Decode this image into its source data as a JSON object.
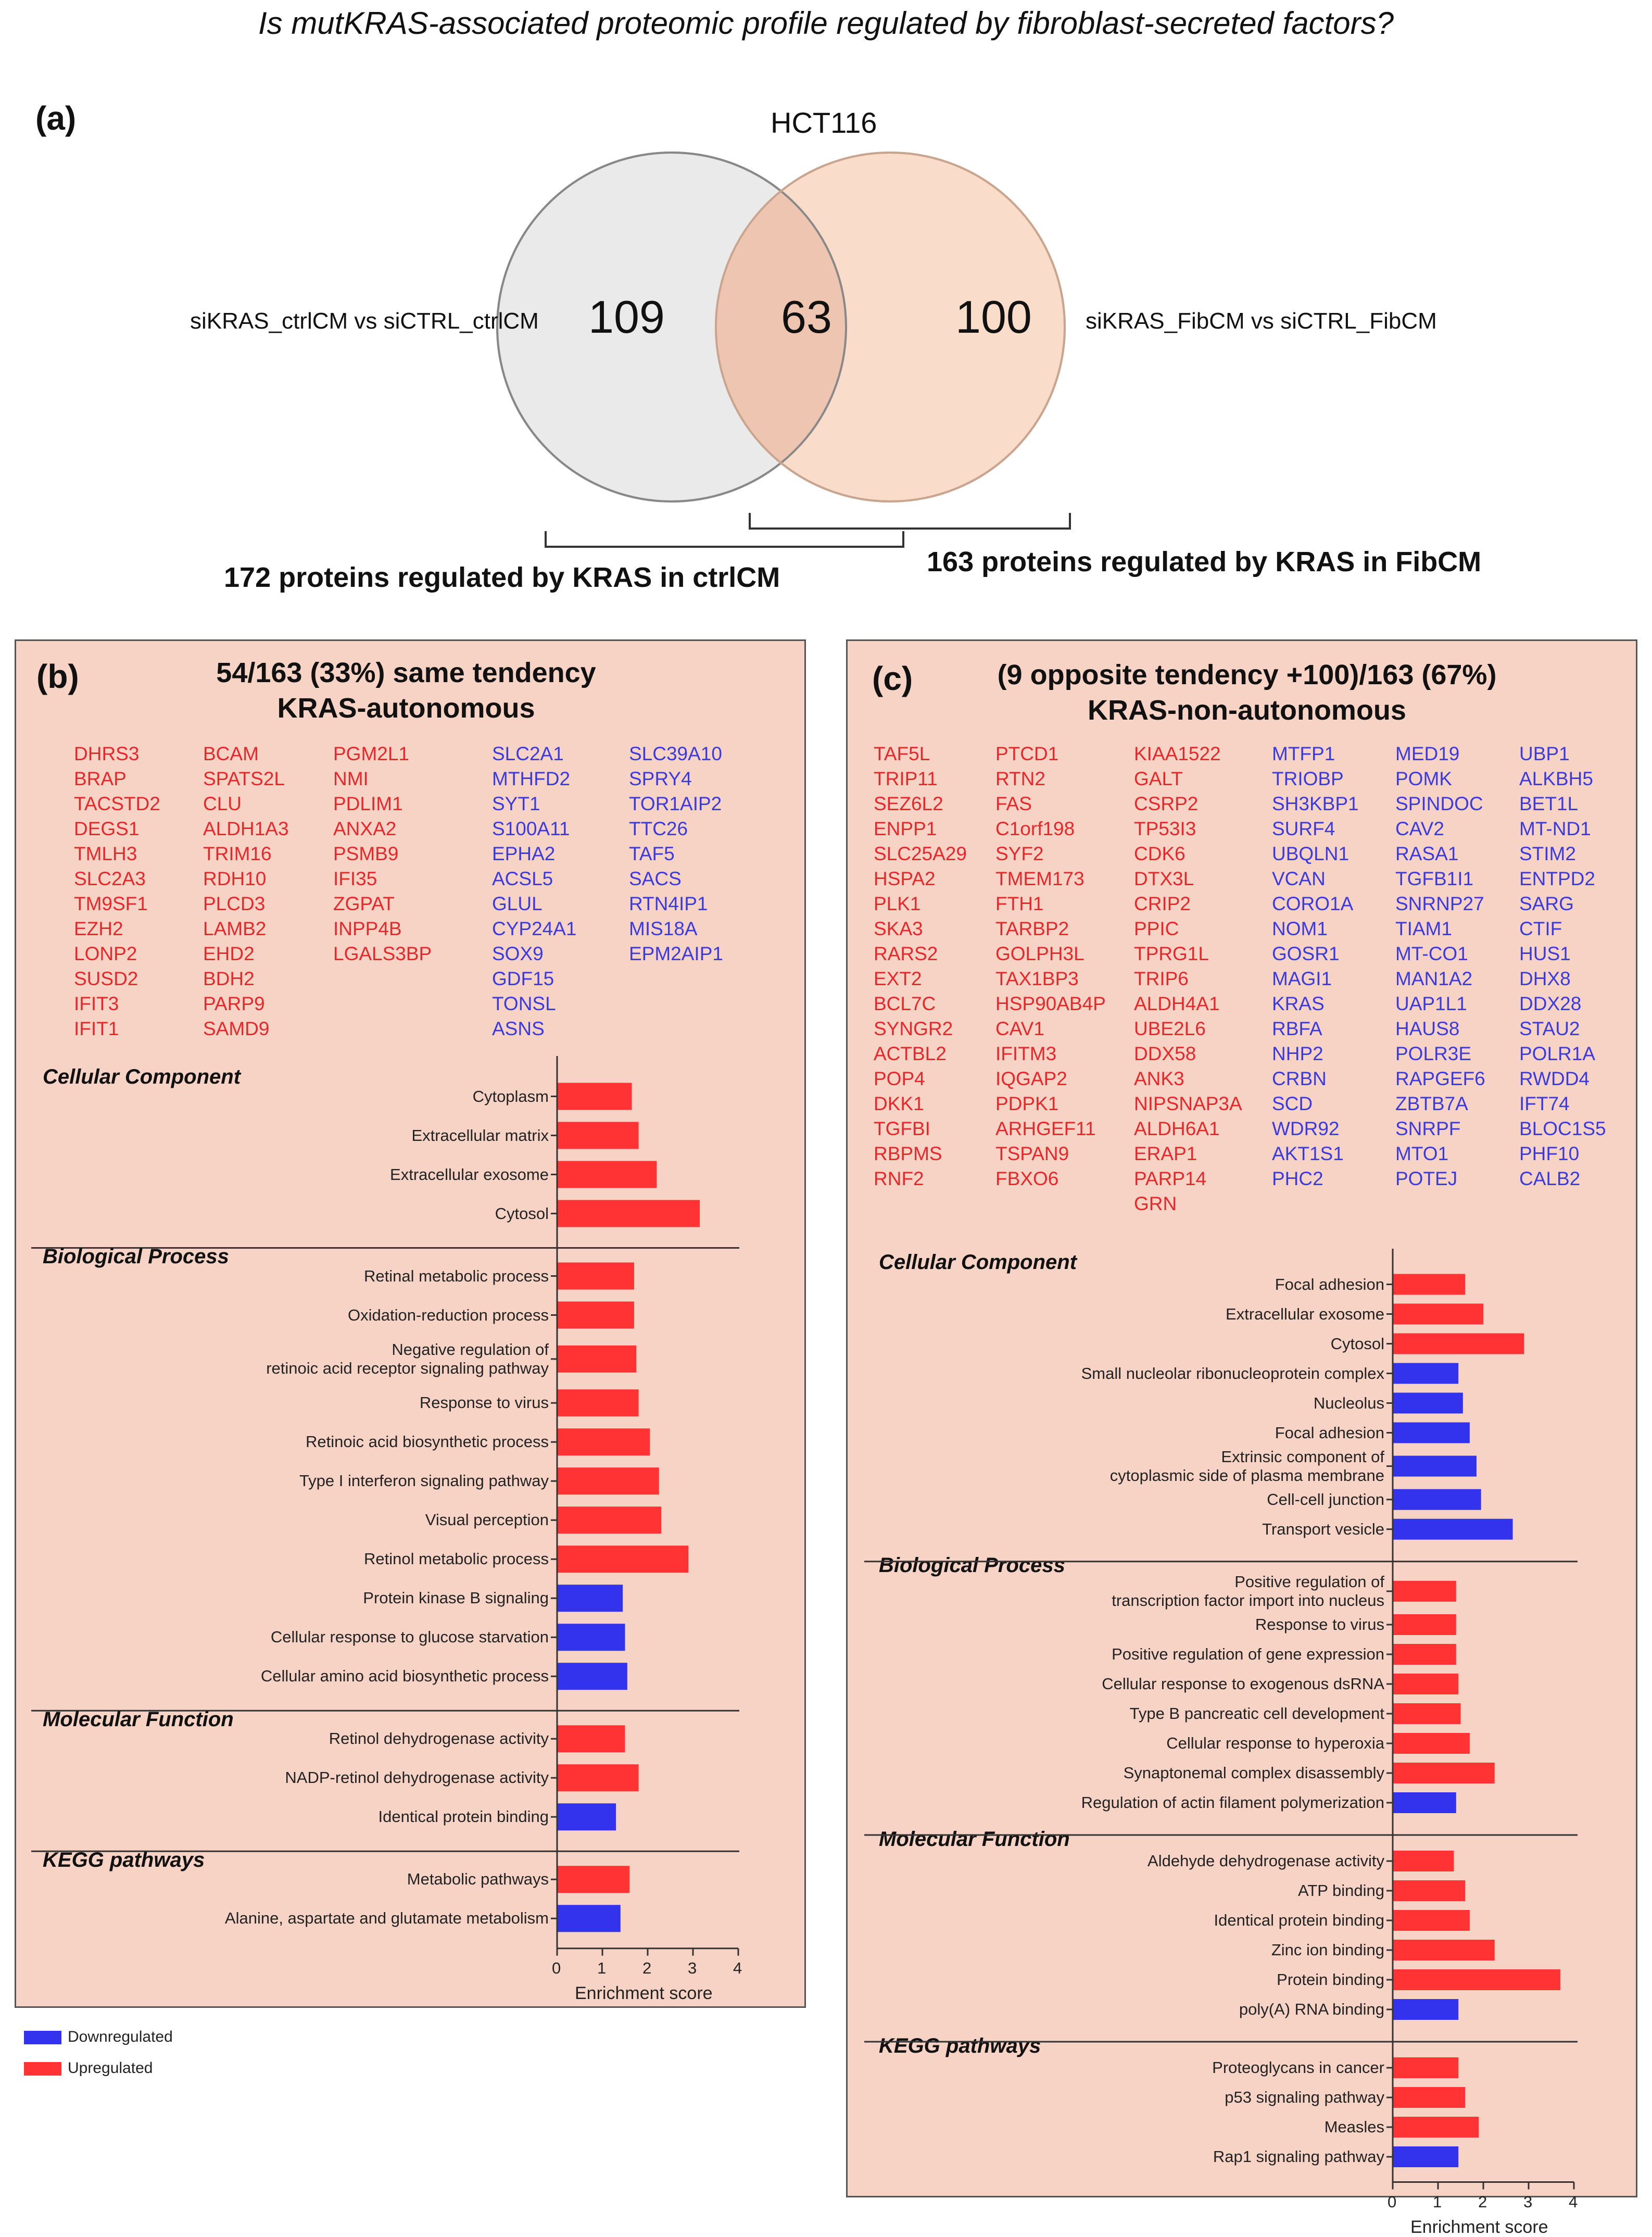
{
  "question": "Is mutKRAS-associated proteomic profile regulated by fibroblast-secreted factors?",
  "colors": {
    "up": "#ff3333",
    "down": "#3333ee",
    "panel_bg": "#f6d3c5",
    "left_circle": "#e6e6e6",
    "right_circle": "#f8d6bf",
    "overlap": "#f0cbb8"
  },
  "panel_a": {
    "label": "(a)",
    "title": "HCT116",
    "left_label": "siKRAS_ctrlCM vs siCTRL_ctrlCM",
    "right_label": "siKRAS_FibCM vs siCTRL_FibCM",
    "left_only": "109",
    "overlap": "63",
    "right_only": "100",
    "left_bracket": "172 proteins regulated by KRAS in ctrlCM",
    "right_bracket": "163 proteins regulated by KRAS in FibCM"
  },
  "panel_b": {
    "label": "(b)",
    "title_line1": "54/163 (33%) same tendency",
    "title_line2": "KRAS-autonomous",
    "up_col1": [
      "DHRS3",
      "BRAP",
      "TACSTD2",
      "DEGS1",
      "TMLH3",
      "SLC2A3",
      "TM9SF1",
      "EZH2",
      "LONP2",
      "SUSD2",
      "IFIT3",
      "IFIT1"
    ],
    "up_col2": [
      "BCAM",
      "SPATS2L",
      "CLU",
      "ALDH1A3",
      "TRIM16",
      "RDH10",
      "PLCD3",
      "LAMB2",
      "EHD2",
      "BDH2",
      "PARP9",
      "SAMD9"
    ],
    "up_col3": [
      "PGM2L1",
      "NMI",
      "PDLIM1",
      "ANXA2",
      "PSMB9",
      "IFI35",
      "ZGPAT",
      "INPP4B",
      "LGALS3BP"
    ],
    "down_col1": [
      "SLC2A1",
      "MTHFD2",
      "SYT1",
      "S100A11",
      "EPHA2",
      "ACSL5",
      "GLUL",
      "CYP24A1",
      "SOX9",
      "GDF15",
      "TONSL",
      "ASNS"
    ],
    "down_col2": [
      "SLC39A10",
      "SPRY4",
      "TOR1AIP2",
      "TTC26",
      "TAF5",
      "SACS",
      "RTN4IP1",
      "MIS18A",
      "EPM2AIP1"
    ],
    "categories": {
      "cc": "Cellular Component",
      "bp": "Biological Process",
      "mf": "Molecular Function",
      "kegg": "KEGG pathways"
    },
    "axis": {
      "ticks": [
        "0",
        "1",
        "2",
        "3",
        "4"
      ],
      "xlabel": "Enrichment score"
    }
  },
  "panel_c": {
    "label": "(c)",
    "title_line1": "(9 opposite tendency +100)/163 (67%)",
    "title_line2": "KRAS-non-autonomous",
    "up_col1": [
      "TAF5L",
      "TRIP11",
      "SEZ6L2",
      "ENPP1",
      "SLC25A29",
      "HSPA2",
      "PLK1",
      "SKA3",
      "RARS2",
      "EXT2",
      "BCL7C",
      "SYNGR2",
      "ACTBL2",
      "POP4",
      "DKK1",
      "TGFBI",
      "RBPMS",
      "RNF2"
    ],
    "up_col2": [
      "PTCD1",
      "RTN2",
      "FAS",
      "C1orf198",
      "SYF2",
      "TMEM173",
      "FTH1",
      "TARBP2",
      "GOLPH3L",
      "TAX1BP3",
      "HSP90AB4P",
      "CAV1",
      "IFITM3",
      "IQGAP2",
      "PDPK1",
      "ARHGEF11",
      "TSPAN9",
      "FBXO6"
    ],
    "up_col3": [
      "KIAA1522",
      "GALT",
      "CSRP2",
      "TP53I3",
      "CDK6",
      "DTX3L",
      "CRIP2",
      "PPIC",
      "TPRG1L",
      "TRIP6",
      "ALDH4A1",
      "UBE2L6",
      "DDX58",
      "ANK3",
      "NIPSNAP3A",
      "ALDH6A1",
      "ERAP1",
      "PARP14",
      "GRN"
    ],
    "down_col1": [
      "MTFP1",
      "TRIOBP",
      "SH3KBP1",
      "SURF4",
      "UBQLN1",
      "VCAN",
      "CORO1A",
      "NOM1",
      "GOSR1",
      "MAGI1",
      "KRAS",
      "RBFA",
      "NHP2",
      "CRBN",
      "SCD",
      "WDR92",
      "AKT1S1",
      "PHC2"
    ],
    "down_col2": [
      "MED19",
      "POMK",
      "SPINDOC",
      "CAV2",
      "RASA1",
      "TGFB1I1",
      "SNRNP27",
      "TIAM1",
      "MT-CO1",
      "MAN1A2",
      "UAP1L1",
      "HAUS8",
      "POLR3E",
      "RAPGEF6",
      "ZBTB7A",
      "SNRPF",
      "MTO1",
      "POTEJ"
    ],
    "down_col3": [
      "UBP1",
      "ALKBH5",
      "BET1L",
      "MT-ND1",
      "STIM2",
      "ENTPD2",
      "SARG",
      "CTIF",
      "HUS1",
      "DHX8",
      "DDX28",
      "STAU2",
      "POLR1A",
      "RWDD4",
      "IFT74",
      "BLOC1S5",
      "PHF10",
      "CALB2"
    ],
    "categories": {
      "cc": "Cellular Component",
      "bp": "Biological Process",
      "mf": "Molecular Function",
      "kegg": "KEGG pathways"
    },
    "axis": {
      "ticks": [
        "0",
        "1",
        "2",
        "3",
        "4"
      ],
      "xlabel": "Enrichment score"
    }
  },
  "legend": {
    "down": "Downregulated",
    "up": "Upregulated"
  },
  "chart_data": [
    {
      "type": "bar",
      "orientation": "horizontal",
      "title": "KRAS-autonomous enrichment",
      "xlabel": "Enrichment score",
      "xlim": [
        0,
        4
      ],
      "groups": [
        {
          "name": "Cellular Component",
          "items": [
            {
              "label": "Cytoplasm",
              "value": 1.65,
              "dir": "up"
            },
            {
              "label": "Extracellular matrix",
              "value": 1.8,
              "dir": "up"
            },
            {
              "label": "Extracellular exosome",
              "value": 2.2,
              "dir": "up"
            },
            {
              "label": "Cytosol",
              "value": 3.15,
              "dir": "up"
            }
          ]
        },
        {
          "name": "Biological Process",
          "items": [
            {
              "label": "Retinal metabolic process",
              "value": 1.7,
              "dir": "up"
            },
            {
              "label": "Oxidation-reduction process",
              "value": 1.7,
              "dir": "up"
            },
            {
              "label": "Negative regulation of\nretinoic acid receptor signaling pathway",
              "value": 1.75,
              "dir": "up"
            },
            {
              "label": "Response to virus",
              "value": 1.8,
              "dir": "up"
            },
            {
              "label": "Retinoic acid biosynthetic process",
              "value": 2.05,
              "dir": "up"
            },
            {
              "label": "Type I interferon signaling pathway",
              "value": 2.25,
              "dir": "up"
            },
            {
              "label": "Visual perception",
              "value": 2.3,
              "dir": "up"
            },
            {
              "label": "Retinol metabolic process",
              "value": 2.9,
              "dir": "up"
            },
            {
              "label": "Protein kinase B signaling",
              "value": 1.45,
              "dir": "down"
            },
            {
              "label": "Cellular response to glucose starvation",
              "value": 1.5,
              "dir": "down"
            },
            {
              "label": "Cellular amino acid biosynthetic process",
              "value": 1.55,
              "dir": "down"
            }
          ]
        },
        {
          "name": "Molecular Function",
          "items": [
            {
              "label": "Retinol dehydrogenase activity",
              "value": 1.5,
              "dir": "up"
            },
            {
              "label": "NADP-retinol dehydrogenase activity",
              "value": 1.8,
              "dir": "up"
            },
            {
              "label": "Identical protein binding",
              "value": 1.3,
              "dir": "down"
            }
          ]
        },
        {
          "name": "KEGG pathways",
          "items": [
            {
              "label": "Metabolic pathways",
              "value": 1.6,
              "dir": "up"
            },
            {
              "label": "Alanine, aspartate and glutamate metabolism",
              "value": 1.4,
              "dir": "down"
            }
          ]
        }
      ]
    },
    {
      "type": "bar",
      "orientation": "horizontal",
      "title": "KRAS-non-autonomous enrichment",
      "xlabel": "Enrichment score",
      "xlim": [
        0,
        4
      ],
      "groups": [
        {
          "name": "Cellular Component",
          "items": [
            {
              "label": "Focal adhesion",
              "value": 1.6,
              "dir": "up"
            },
            {
              "label": "Extracellular exosome",
              "value": 2.0,
              "dir": "up"
            },
            {
              "label": "Cytosol",
              "value": 2.9,
              "dir": "up"
            },
            {
              "label": "Small nucleolar ribonucleoprotein complex",
              "value": 1.45,
              "dir": "down"
            },
            {
              "label": "Nucleolus",
              "value": 1.55,
              "dir": "down"
            },
            {
              "label": "Focal adhesion",
              "value": 1.7,
              "dir": "down"
            },
            {
              "label": "Extrinsic component of\ncytoplasmic side of plasma membrane",
              "value": 1.85,
              "dir": "down"
            },
            {
              "label": "Cell-cell junction",
              "value": 1.95,
              "dir": "down"
            },
            {
              "label": "Transport vesicle",
              "value": 2.65,
              "dir": "down"
            }
          ]
        },
        {
          "name": "Biological Process",
          "items": [
            {
              "label": "Positive regulation of\ntranscription factor import into nucleus",
              "value": 1.4,
              "dir": "up"
            },
            {
              "label": "Response to virus",
              "value": 1.4,
              "dir": "up"
            },
            {
              "label": "Positive regulation of gene expression",
              "value": 1.4,
              "dir": "up"
            },
            {
              "label": "Cellular response to exogenous dsRNA",
              "value": 1.45,
              "dir": "up"
            },
            {
              "label": "Type B pancreatic cell development",
              "value": 1.5,
              "dir": "up"
            },
            {
              "label": "Cellular response to hyperoxia",
              "value": 1.7,
              "dir": "up"
            },
            {
              "label": "Synaptonemal complex disassembly",
              "value": 2.25,
              "dir": "up"
            },
            {
              "label": "Regulation of actin filament polymerization",
              "value": 1.4,
              "dir": "down"
            }
          ]
        },
        {
          "name": "Molecular Function",
          "items": [
            {
              "label": "Aldehyde dehydrogenase activity",
              "value": 1.35,
              "dir": "up"
            },
            {
              "label": "ATP binding",
              "value": 1.6,
              "dir": "up"
            },
            {
              "label": "Identical protein binding",
              "value": 1.7,
              "dir": "up"
            },
            {
              "label": "Zinc ion binding",
              "value": 2.25,
              "dir": "up"
            },
            {
              "label": "Protein binding",
              "value": 3.7,
              "dir": "up"
            },
            {
              "label": "poly(A) RNA binding",
              "value": 1.45,
              "dir": "down"
            }
          ]
        },
        {
          "name": "KEGG pathways",
          "items": [
            {
              "label": "Proteoglycans in cancer",
              "value": 1.45,
              "dir": "up"
            },
            {
              "label": "p53 signaling pathway",
              "value": 1.6,
              "dir": "up"
            },
            {
              "label": "Measles",
              "value": 1.9,
              "dir": "up"
            },
            {
              "label": "Rap1 signaling pathway",
              "value": 1.45,
              "dir": "down"
            }
          ]
        }
      ]
    }
  ]
}
